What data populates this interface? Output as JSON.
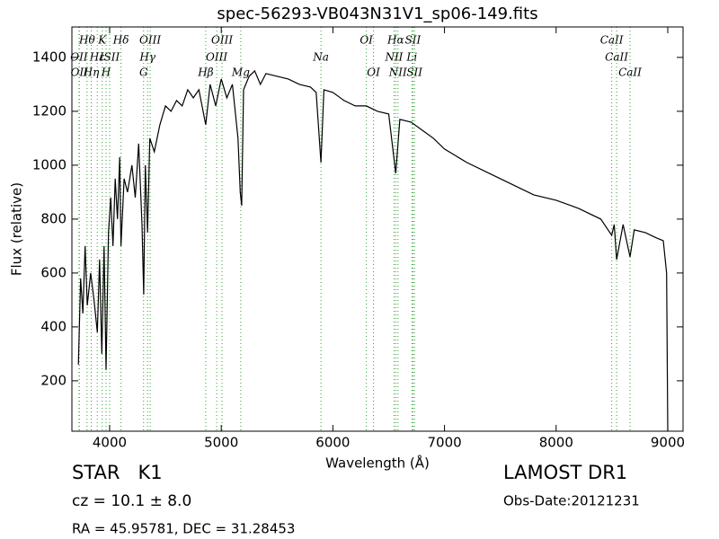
{
  "chart_data": {
    "type": "line",
    "title": "spec-56293-VB043N31V1_sp06-149.fits",
    "xlabel": "Wavelength (Å)",
    "ylabel": "Flux (relative)",
    "xlim": [
      3662,
      9137
    ],
    "ylim": [
      13,
      1513
    ],
    "xticks": [
      4000,
      5000,
      6000,
      7000,
      8000,
      9000
    ],
    "yticks": [
      200,
      400,
      600,
      800,
      1000,
      1200,
      1400
    ],
    "series": [
      {
        "color": "#000000",
        "x": [
          3720,
          3740,
          3760,
          3780,
          3800,
          3830,
          3860,
          3890,
          3910,
          3930,
          3950,
          3968,
          3990,
          4010,
          4030,
          4050,
          4070,
          4090,
          4102,
          4130,
          4160,
          4200,
          4230,
          4260,
          4290,
          4305,
          4320,
          4340,
          4360,
          4400,
          4450,
          4500,
          4550,
          4600,
          4650,
          4700,
          4750,
          4800,
          4861,
          4900,
          4950,
          5000,
          5050,
          5100,
          5150,
          5170,
          5183,
          5200,
          5250,
          5300,
          5350,
          5400,
          5500,
          5600,
          5700,
          5800,
          5850,
          5893,
          5920,
          6000,
          6100,
          6200,
          6300,
          6400,
          6500,
          6563,
          6600,
          6700,
          6800,
          6900,
          7000,
          7200,
          7400,
          7600,
          7800,
          8000,
          8200,
          8400,
          8498,
          8520,
          8542,
          8600,
          8662,
          8700,
          8800,
          8900,
          8960,
          8990,
          9000
        ],
        "values": [
          260,
          580,
          450,
          700,
          480,
          600,
          500,
          380,
          650,
          300,
          700,
          240,
          750,
          880,
          700,
          950,
          800,
          1030,
          700,
          950,
          900,
          1000,
          880,
          1080,
          780,
          520,
          1000,
          750,
          1100,
          1050,
          1150,
          1220,
          1200,
          1240,
          1220,
          1280,
          1250,
          1280,
          1150,
          1300,
          1220,
          1320,
          1250,
          1300,
          1100,
          900,
          850,
          1280,
          1330,
          1350,
          1300,
          1340,
          1330,
          1320,
          1300,
          1290,
          1270,
          1010,
          1280,
          1270,
          1240,
          1220,
          1220,
          1200,
          1190,
          970,
          1170,
          1160,
          1130,
          1100,
          1060,
          1010,
          970,
          930,
          890,
          870,
          840,
          800,
          740,
          780,
          650,
          780,
          660,
          760,
          750,
          730,
          720,
          600,
          13
        ]
      }
    ],
    "line_color": "#2ca02c",
    "lines": [
      {
        "label": "Hθ",
        "wavelength": 3798
      },
      {
        "label": "K",
        "wavelength": 3934
      },
      {
        "label": "Hδ",
        "wavelength": 4102
      },
      {
        "label": "OIII",
        "wavelength": 4363
      },
      {
        "label": "OIII",
        "wavelength": 5007
      },
      {
        "label": "OI",
        "wavelength": 6300
      },
      {
        "label": "Hα",
        "wavelength": 6563
      },
      {
        "label": "SII",
        "wavelength": 6717
      },
      {
        "label": "CaII",
        "wavelength": 8498
      },
      {
        "label": "OII",
        "wavelength": 3726
      },
      {
        "label": "Hε",
        "wavelength": 3889
      },
      {
        "label": "ISII",
        "wavelength": 4000
      },
      {
        "label": "Hγ",
        "wavelength": 4340
      },
      {
        "label": "OIII",
        "wavelength": 4959
      },
      {
        "label": "Na",
        "wavelength": 5893
      },
      {
        "label": "NII",
        "wavelength": 6548
      },
      {
        "label": "Li",
        "wavelength": 6708
      },
      {
        "label": "CaII",
        "wavelength": 8542
      },
      {
        "label": "OII",
        "wavelength": 3729
      },
      {
        "label": "Hη",
        "wavelength": 3835
      },
      {
        "label": "H",
        "wavelength": 3968
      },
      {
        "label": "G",
        "wavelength": 4304
      },
      {
        "label": "Hβ",
        "wavelength": 4861
      },
      {
        "label": "Mg",
        "wavelength": 5175
      },
      {
        "label": "OI",
        "wavelength": 6364
      },
      {
        "label": "NII",
        "wavelength": 6583
      },
      {
        "label": "SII",
        "wavelength": 6731
      },
      {
        "label": "CaII",
        "wavelength": 8662
      }
    ],
    "info": {
      "object": "STAR   K1",
      "cz": "cz = 10.1 ± 8.0",
      "coords": "RA = 45.95781, DEC = 31.28453",
      "survey": "LAMOST DR1",
      "date": "Obs-Date:20121231"
    }
  }
}
